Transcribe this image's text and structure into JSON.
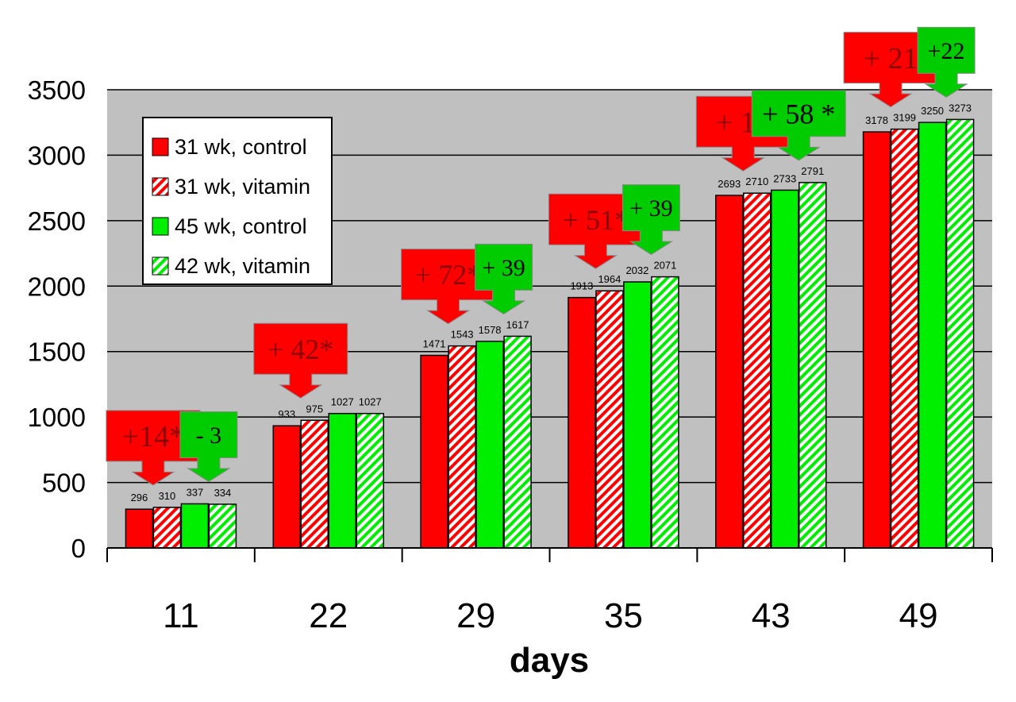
{
  "chart_data": {
    "type": "bar",
    "xlabel": "days",
    "ylabel": "",
    "ylim": [
      0,
      3500
    ],
    "yticks": [
      0,
      500,
      1000,
      1500,
      2000,
      2500,
      3000,
      3500
    ],
    "categories": [
      "11",
      "22",
      "29",
      "35",
      "43",
      "49"
    ],
    "grid": true,
    "legend_position": "top-left",
    "series": [
      {
        "name": "31 wk, control",
        "values": [
          296,
          933,
          1471,
          1913,
          2693,
          3178
        ],
        "color": "#ff0000",
        "pattern": "solid"
      },
      {
        "name": "31 wk, vitamin",
        "values": [
          310,
          975,
          1543,
          1964,
          2710,
          3199
        ],
        "color": "#ff0000",
        "pattern": "hatched"
      },
      {
        "name": "45 wk, control",
        "values": [
          337,
          1027,
          1578,
          2032,
          2733,
          3250
        ],
        "color": "#00ee00",
        "pattern": "solid"
      },
      {
        "name": "42 wk, vitamin",
        "values": [
          334,
          1027,
          1617,
          2071,
          2791,
          3273
        ],
        "color": "#00ee00",
        "pattern": "hatched"
      }
    ],
    "annotations": [
      {
        "category": "11",
        "group": "31 wk",
        "text": "+14*",
        "color": "#ff0000"
      },
      {
        "category": "11",
        "group": "45/42 wk",
        "text": "- 3",
        "color": "#00cc00"
      },
      {
        "category": "22",
        "group": "31 wk",
        "text": "+ 42*",
        "color": "#ff0000"
      },
      {
        "category": "29",
        "group": "31 wk",
        "text": "+ 72*",
        "color": "#ff0000"
      },
      {
        "category": "29",
        "group": "45/42 wk",
        "text": "+ 39",
        "color": "#00cc00"
      },
      {
        "category": "35",
        "group": "31 wk",
        "text": "+ 51*",
        "color": "#ff0000"
      },
      {
        "category": "35",
        "group": "45/42 wk",
        "text": "+ 39",
        "color": "#00cc00"
      },
      {
        "category": "43",
        "group": "31 wk",
        "text": "+ 17",
        "color": "#ff0000"
      },
      {
        "category": "43",
        "group": "45/42 wk",
        "text": "+ 58 *",
        "color": "#00cc00"
      },
      {
        "category": "49",
        "group": "31 wk",
        "text": "+ 21",
        "color": "#ff0000"
      },
      {
        "category": "49",
        "group": "45/42 wk",
        "text": "+22",
        "color": "#00cc00"
      }
    ]
  }
}
